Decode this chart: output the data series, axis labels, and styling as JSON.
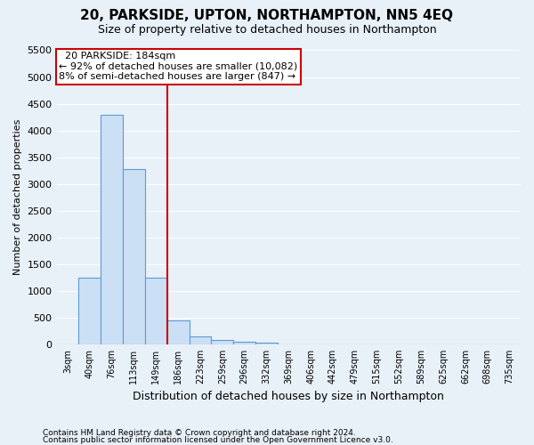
{
  "title": "20, PARKSIDE, UPTON, NORTHAMPTON, NN5 4EQ",
  "subtitle": "Size of property relative to detached houses in Northampton",
  "xlabel": "Distribution of detached houses by size in Northampton",
  "ylabel": "Number of detached properties",
  "footnote1": "Contains HM Land Registry data © Crown copyright and database right 2024.",
  "footnote2": "Contains public sector information licensed under the Open Government Licence v3.0.",
  "ylim": [
    0,
    5500
  ],
  "yticks": [
    0,
    500,
    1000,
    1500,
    2000,
    2500,
    3000,
    3500,
    4000,
    4500,
    5000,
    5500
  ],
  "bin_labels": [
    "3sqm",
    "40sqm",
    "76sqm",
    "113sqm",
    "149sqm",
    "186sqm",
    "223sqm",
    "259sqm",
    "296sqm",
    "332sqm",
    "369sqm",
    "406sqm",
    "442sqm",
    "479sqm",
    "515sqm",
    "552sqm",
    "589sqm",
    "625sqm",
    "662sqm",
    "698sqm",
    "735sqm"
  ],
  "bar_heights": [
    0,
    1250,
    4300,
    3275,
    1250,
    450,
    150,
    75,
    50,
    25,
    5,
    0,
    0,
    0,
    0,
    0,
    0,
    0,
    0,
    0,
    0
  ],
  "bar_color": "#cce0f5",
  "bar_edgecolor": "#5b9bd5",
  "vline_x": 4.5,
  "property_line_label": "20 PARKSIDE: 184sqm",
  "annotation_line1": "← 92% of detached houses are smaller (10,082)",
  "annotation_line2": "8% of semi-detached houses are larger (847) →",
  "annotation_box_color": "#cc0000",
  "vline_color": "#cc0000",
  "bg_color": "#e8f0f8",
  "plot_bg_color": "#e8f0f8",
  "grid_color": "#ffffff",
  "title_fontsize": 11,
  "subtitle_fontsize": 9,
  "ylabel_fontsize": 8,
  "xlabel_fontsize": 9,
  "tick_fontsize": 8,
  "xtick_fontsize": 7,
  "annot_fontsize": 8
}
